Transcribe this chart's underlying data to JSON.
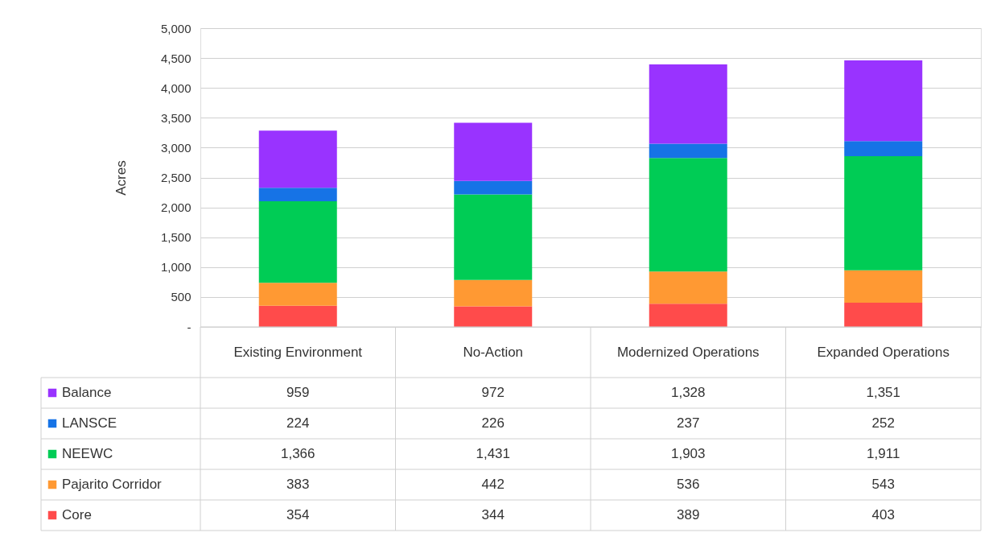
{
  "chart_data": {
    "type": "bar",
    "stacked": true,
    "ylabel": "Acres",
    "categories": [
      "Existing Environment",
      "No-Action",
      "Modernized Operations",
      "Expanded Operations"
    ],
    "series": [
      {
        "name": "Core",
        "color": "#ff4b4b",
        "values": [
          354,
          344,
          389,
          403
        ],
        "value_labels": [
          "354",
          "344",
          "389",
          "403"
        ]
      },
      {
        "name": "Pajarito Corridor",
        "color": "#ff9933",
        "values": [
          383,
          442,
          536,
          543
        ],
        "value_labels": [
          "383",
          "442",
          "536",
          "543"
        ]
      },
      {
        "name": "NEEWC",
        "color": "#00cc55",
        "values": [
          1366,
          1431,
          1903,
          1911
        ],
        "value_labels": [
          "1,366",
          "1,431",
          "1,903",
          "1,911"
        ]
      },
      {
        "name": "LANSCE",
        "color": "#1673e6",
        "values": [
          224,
          226,
          237,
          252
        ],
        "value_labels": [
          "224",
          "226",
          "237",
          "252"
        ]
      },
      {
        "name": "Balance",
        "color": "#9933ff",
        "values": [
          959,
          972,
          1328,
          1351
        ],
        "value_labels": [
          "959",
          "972",
          "1,328",
          "1,351"
        ]
      }
    ],
    "ylim": [
      0,
      5000
    ],
    "yticks": [
      {
        "value": 0,
        "label": "-"
      },
      500,
      {
        "value": 1000,
        "label": "1,000"
      },
      {
        "value": 1500,
        "label": "1,500"
      },
      {
        "value": 2000,
        "label": "2,000"
      },
      {
        "value": 2500,
        "label": "2,500"
      },
      {
        "value": 3000,
        "label": "3,000"
      },
      {
        "value": 3500,
        "label": "3,500"
      },
      {
        "value": 4000,
        "label": "4,000"
      },
      {
        "value": 4500,
        "label": "4,500"
      },
      {
        "value": 5000,
        "label": "5,000"
      }
    ],
    "grid": "y",
    "legend": "bottom"
  }
}
